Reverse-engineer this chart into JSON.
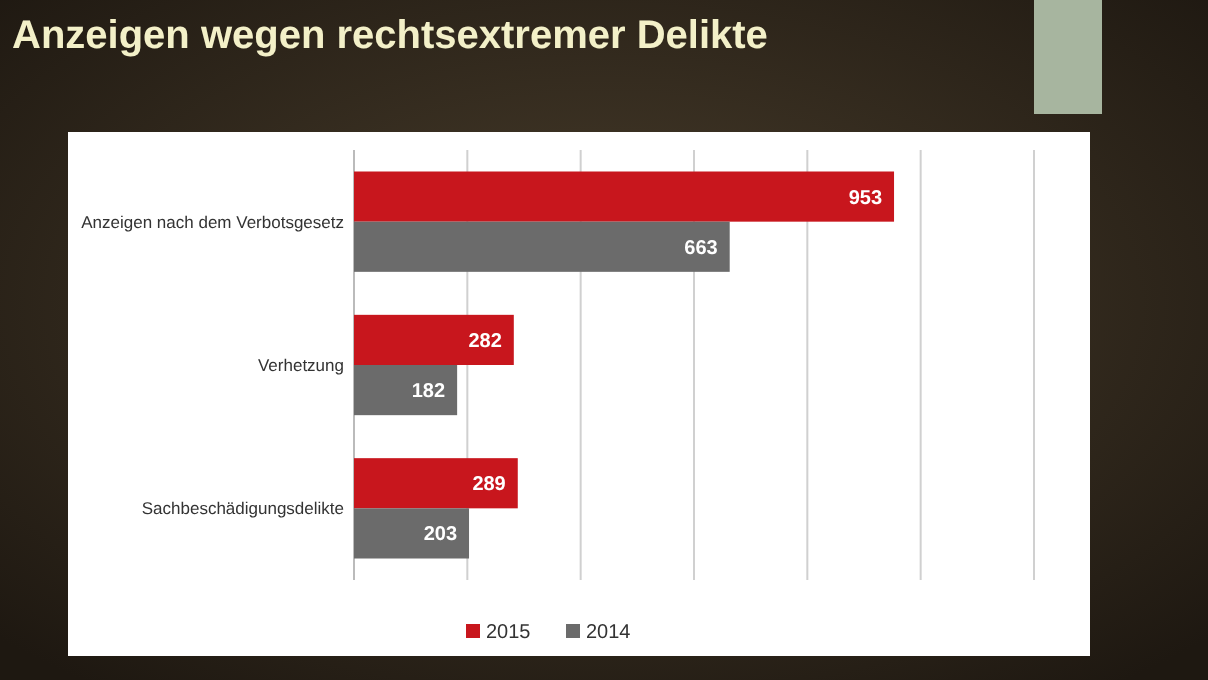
{
  "chart_data": {
    "type": "bar",
    "orientation": "horizontal",
    "title": "Anzeigen wegen rechtsextremer Delikte",
    "categories": [
      "Anzeigen nach dem Verbotsgesetz",
      "Verhetzung",
      "Sachbeschädigungsdelikte"
    ],
    "series": [
      {
        "name": "2015",
        "color": "#c8161d",
        "values": [
          953,
          282,
          289
        ]
      },
      {
        "name": "2014",
        "color": "#6b6b6b",
        "values": [
          663,
          182,
          203
        ]
      }
    ],
    "xlim": [
      0,
      1200
    ],
    "xticks": [
      {
        "value": 0,
        "label": null
      },
      {
        "value": 200,
        "label": null
      },
      {
        "value": 400,
        "label": null
      },
      {
        "value": 600,
        "label": null
      },
      {
        "value": 800,
        "label": null
      },
      {
        "value": 1000,
        "label": null
      },
      {
        "value": 1200,
        "label": null
      }
    ],
    "grid": "x",
    "legend": "bottom",
    "data_labels": true,
    "tick_labels": "y"
  }
}
